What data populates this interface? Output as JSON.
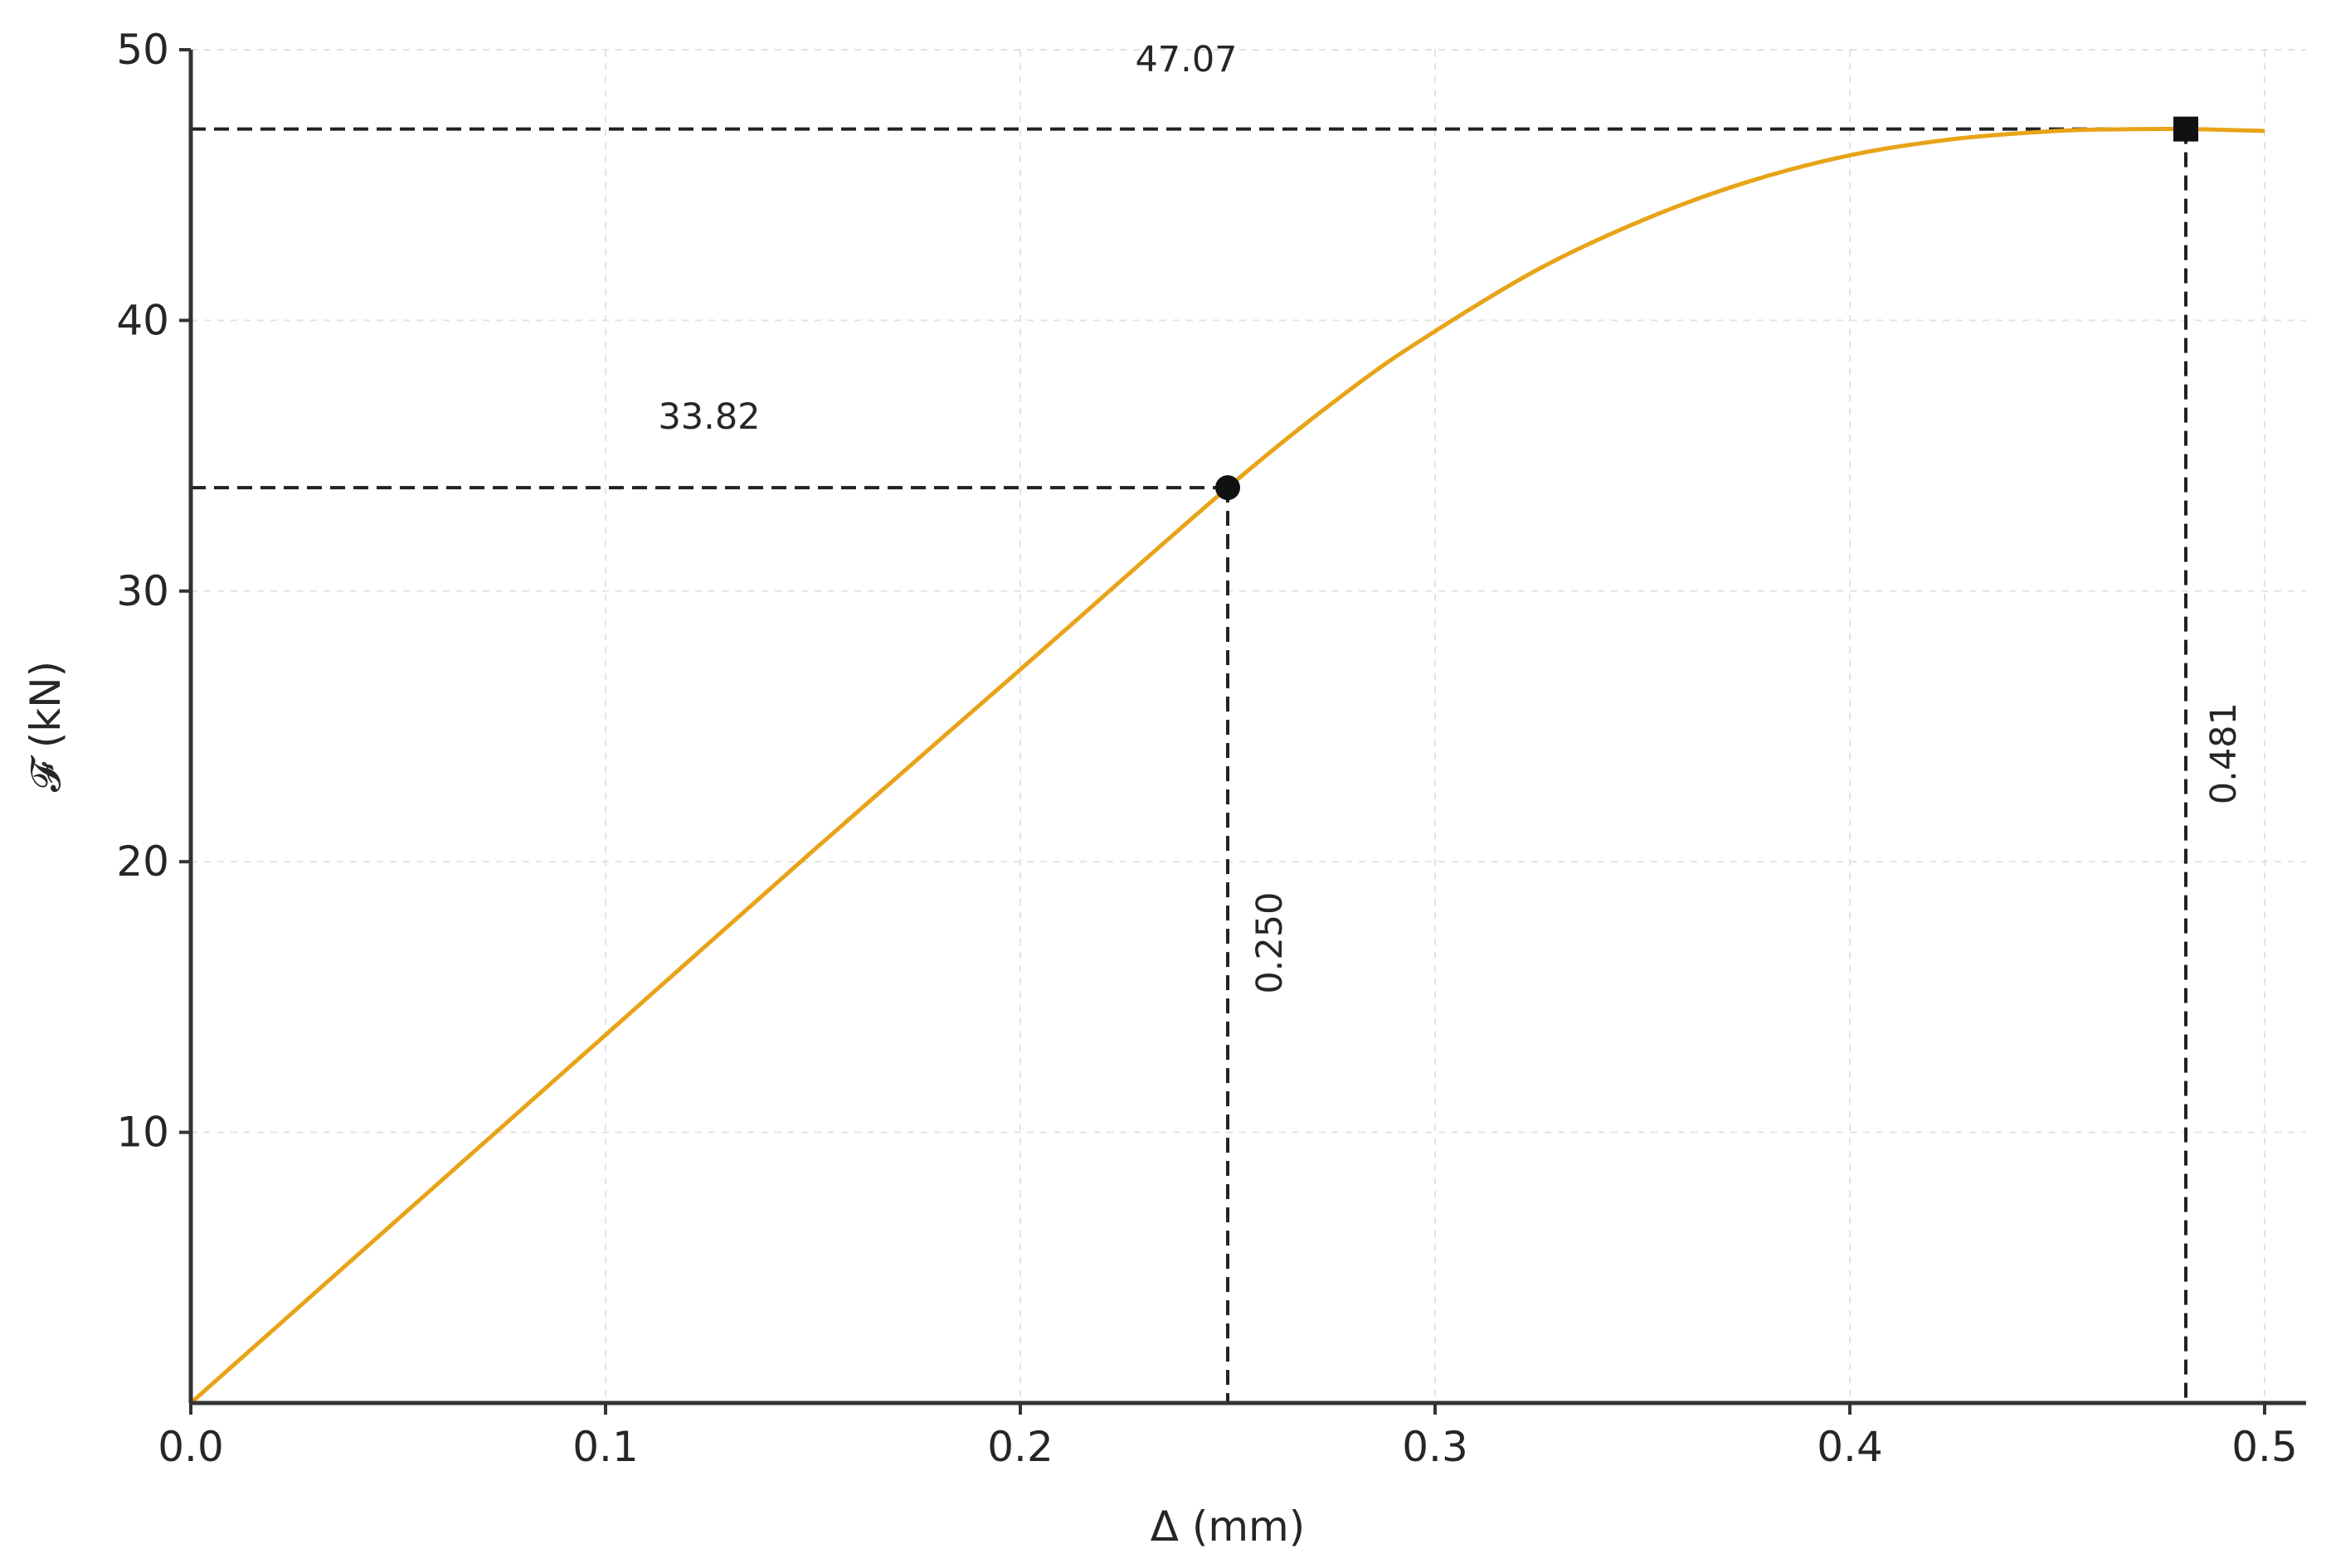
{
  "chart_data": {
    "type": "line",
    "xlabel": "Δ (mm)",
    "ylabel": "𝓕 (kN)",
    "xlim": [
      0.0,
      0.5
    ],
    "ylim": [
      0,
      50
    ],
    "xticks": [
      0.0,
      0.1,
      0.2,
      0.3,
      0.4,
      0.5
    ],
    "xtick_labels": [
      "0.0",
      "0.1",
      "0.2",
      "0.3",
      "0.4",
      "0.5"
    ],
    "yticks": [
      10,
      20,
      30,
      40,
      50
    ],
    "ytick_labels": [
      "10",
      "20",
      "30",
      "40",
      "50"
    ],
    "grid": true,
    "series": [
      {
        "color": "#E8A317",
        "x": [
          0.0,
          0.05,
          0.1,
          0.15,
          0.2,
          0.25,
          0.28,
          0.3,
          0.325,
          0.35,
          0.375,
          0.4,
          0.425,
          0.45,
          0.465,
          0.481,
          0.5
        ],
        "y": [
          0.0,
          6.8,
          13.6,
          20.4,
          27.1,
          33.82,
          37.5,
          39.6,
          41.9,
          43.7,
          45.1,
          46.1,
          46.7,
          47.0,
          47.06,
          47.07,
          47.0
        ]
      }
    ],
    "markers": [
      {
        "x": 0.25,
        "y": 33.82,
        "shape": "circle"
      },
      {
        "x": 0.481,
        "y": 47.07,
        "shape": "square"
      }
    ],
    "annotations": [
      {
        "text": "33.82",
        "x": 0.125,
        "y": 36.0
      },
      {
        "text": "47.07",
        "x": 0.24,
        "y": 49.2
      },
      {
        "text": "0.250",
        "x": 0.263,
        "y": 17.0,
        "rotation": -90
      },
      {
        "text": "0.481",
        "x": 0.493,
        "y": 24.0,
        "rotation": -90
      }
    ],
    "colors": {
      "line": "#E8A317",
      "guide": "#222222",
      "marker": "#111111",
      "grid": "#e3e3e3",
      "axis": "#333333"
    }
  }
}
